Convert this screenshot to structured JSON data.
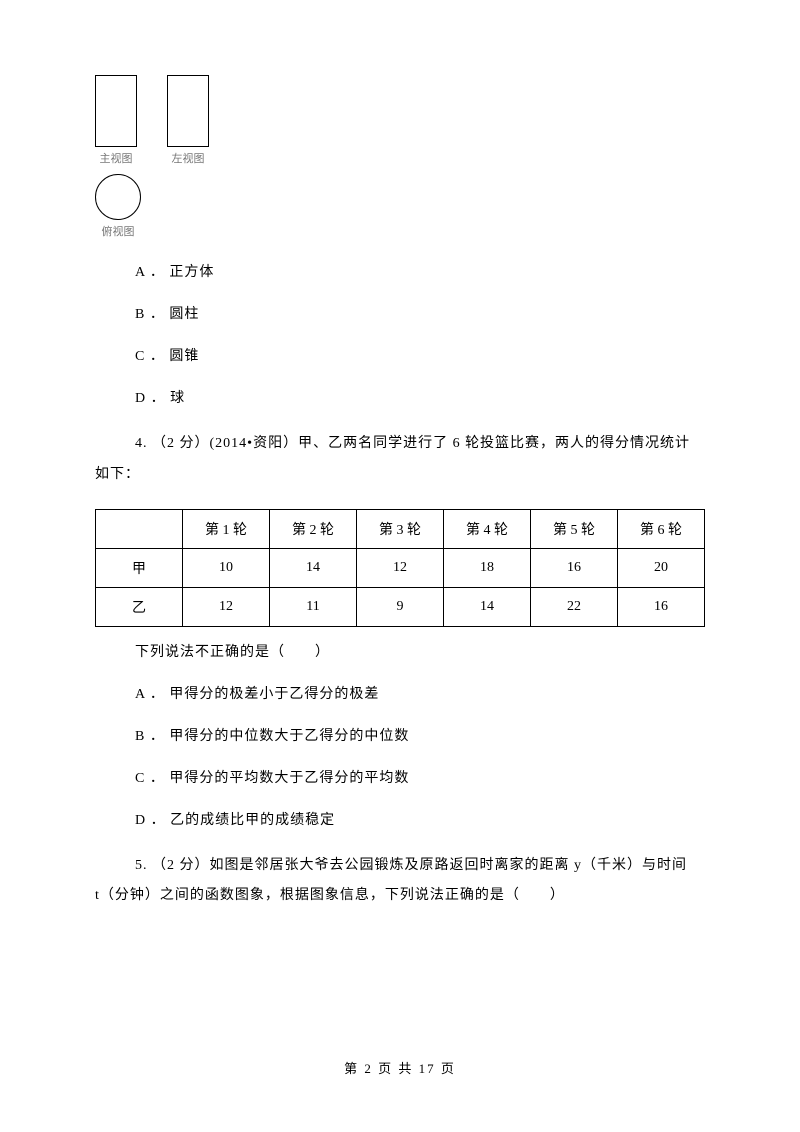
{
  "diagram": {
    "front_label": "主视图",
    "left_label": "左视图",
    "top_label": "俯视图"
  },
  "q3": {
    "optA": "A ． 正方体",
    "optB": "B ． 圆柱",
    "optC": "C ． 圆锥",
    "optD": "D ． 球"
  },
  "q4": {
    "stem1": "4.  （2 分）(2014•资阳）甲、乙两名同学进行了 6 轮投篮比赛，两人的得分情况统计",
    "stem2": "如下：",
    "table": {
      "headers": [
        "",
        "第 1 轮",
        "第 2 轮",
        "第 3 轮",
        "第 4 轮",
        "第 5 轮",
        "第 6 轮"
      ],
      "rows": [
        [
          "甲",
          "10",
          "14",
          "12",
          "18",
          "16",
          "20"
        ],
        [
          "乙",
          "12",
          "11",
          "9",
          "14",
          "22",
          "16"
        ]
      ]
    },
    "after": "下列说法不正确的是（　　）",
    "optA": "A ． 甲得分的极差小于乙得分的极差",
    "optB": "B ． 甲得分的中位数大于乙得分的中位数",
    "optC": "C ． 甲得分的平均数大于乙得分的平均数",
    "optD": "D ． 乙的成绩比甲的成绩稳定"
  },
  "q5": {
    "stem1": "5.  （2 分）如图是邻居张大爷去公园锻炼及原路返回时离家的距离 y（千米）与时间",
    "stem2": "t（分钟）之间的函数图象，根据图象信息，下列说法正确的是（　　）"
  },
  "footer": "第  2  页  共  17  页"
}
